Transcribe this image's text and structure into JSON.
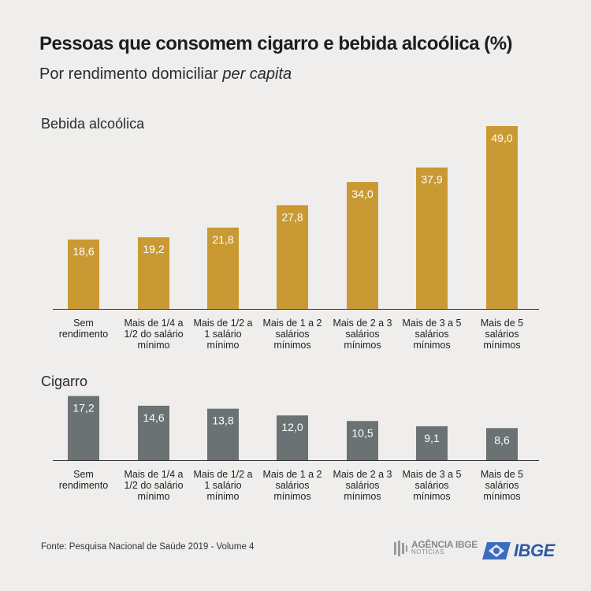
{
  "title": "Pessoas que consomem cigarro e bebida alcoólica (%)",
  "subtitle_prefix": "Por rendimento domiciliar ",
  "subtitle_italic": "per capita",
  "colors": {
    "alcohol": "#c99a33",
    "cigarette": "#6a7273",
    "background": "#efeeec"
  },
  "chart_data": [
    {
      "type": "bar",
      "title": "Bebida alcoólica",
      "categories": [
        [
          "Sem",
          "rendimento"
        ],
        [
          "Mais de 1/4 a",
          "1/2 do salário",
          "mínimo"
        ],
        [
          "Mais de 1/2 a",
          "1 salário",
          "mínimo"
        ],
        [
          "Mais de 1 a 2",
          "salários",
          "mínimos"
        ],
        [
          "Mais de 2 a 3",
          "salários",
          "mínimos"
        ],
        [
          "Mais de 3 a 5",
          "salários",
          "mínimos"
        ],
        [
          "Mais de 5",
          "salários",
          "mínimos"
        ]
      ],
      "values": [
        18.6,
        19.2,
        21.8,
        27.8,
        34.0,
        37.9,
        49.0
      ],
      "value_labels": [
        "18,6",
        "19,2",
        "21,8",
        "27,8",
        "34,0",
        "37,9",
        "49,0"
      ],
      "ylim": [
        0,
        49.0
      ],
      "grid": false
    },
    {
      "type": "bar",
      "title": "Cigarro",
      "categories": [
        [
          "Sem",
          "rendimento"
        ],
        [
          "Mais de 1/4 a",
          "1/2 do salário",
          "mínimo"
        ],
        [
          "Mais de 1/2 a",
          "1 salário",
          "mínimo"
        ],
        [
          "Mais de 1 a 2",
          "salários",
          "mínimos"
        ],
        [
          "Mais de 2 a 3",
          "salários",
          "mínimos"
        ],
        [
          "Mais de 3 a 5",
          "salários",
          "mínimos"
        ],
        [
          "Mais de 5",
          "salários",
          "mínimos"
        ]
      ],
      "values": [
        17.2,
        14.6,
        13.8,
        12.0,
        10.5,
        9.1,
        8.6
      ],
      "value_labels": [
        "17,2",
        "14,6",
        "13,8",
        "12,0",
        "10,5",
        "9,1",
        "8,6"
      ],
      "ylim": [
        0,
        49.0
      ],
      "grid": false
    }
  ],
  "footer": {
    "source": "Fonte: Pesquisa Nacional de Saúde 2019 - Volume 4",
    "agencia_big": "AGÊNCIA IBGE",
    "agencia_small": "NOTÍCIAS",
    "ibge": "IBGE"
  }
}
